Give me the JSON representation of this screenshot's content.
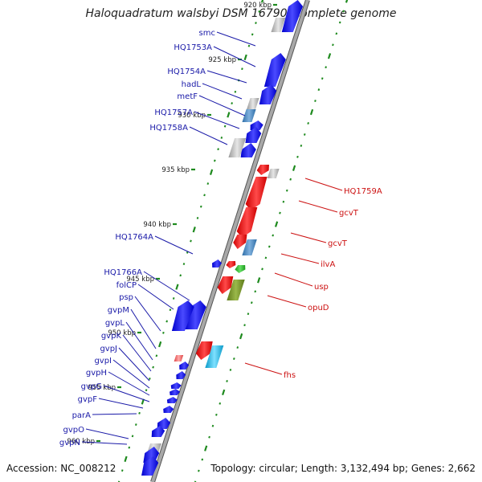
{
  "title": "Haloquadratum walsbyi DSM 16790, complete genome",
  "footer": {
    "accession": "Accession: NC_008212",
    "topology": "Topology: circular; Length: 3,132,494 bp; Genes: 2,662"
  },
  "colors": {
    "backbone": "#a8a8a8",
    "tick": "#1e8a1e",
    "forward_label": "#1a1aa8",
    "reverse_label": "#cc1111",
    "scale_label": "#222222"
  },
  "scale_labels": [
    {
      "label": "920 kbp"
    },
    {
      "label": "925 kbp"
    },
    {
      "label": "930 kbp"
    },
    {
      "label": "935 kbp"
    },
    {
      "label": "940 kbp"
    },
    {
      "label": "945 kbp"
    },
    {
      "label": "950 kbp"
    },
    {
      "label": "955 kbp"
    },
    {
      "label": "960 kbp"
    }
  ],
  "forward_genes": [
    {
      "label": "smc"
    },
    {
      "label": "HQ1753A"
    },
    {
      "label": "HQ1754A"
    },
    {
      "label": "hadL"
    },
    {
      "label": "metF"
    },
    {
      "label": "HQ1757A"
    },
    {
      "label": "HQ1758A"
    },
    {
      "label": "HQ1764A"
    },
    {
      "label": "HQ1766A"
    },
    {
      "label": "folCP"
    },
    {
      "label": "psp"
    },
    {
      "label": "gvpM"
    },
    {
      "label": "gvpL"
    },
    {
      "label": "gvpK"
    },
    {
      "label": "gvpJ"
    },
    {
      "label": "gvpI"
    },
    {
      "label": "gvpH"
    },
    {
      "label": "gvpG"
    },
    {
      "label": "gvpF"
    },
    {
      "label": "parA"
    },
    {
      "label": "gvpO"
    },
    {
      "label": "gvpN"
    }
  ],
  "reverse_genes": [
    {
      "label": "HQ1759A"
    },
    {
      "label": "gcvT"
    },
    {
      "label": "gcvT"
    },
    {
      "label": "ilvA"
    },
    {
      "label": "usp"
    },
    {
      "label": "opuD"
    },
    {
      "label": "fhs"
    }
  ]
}
